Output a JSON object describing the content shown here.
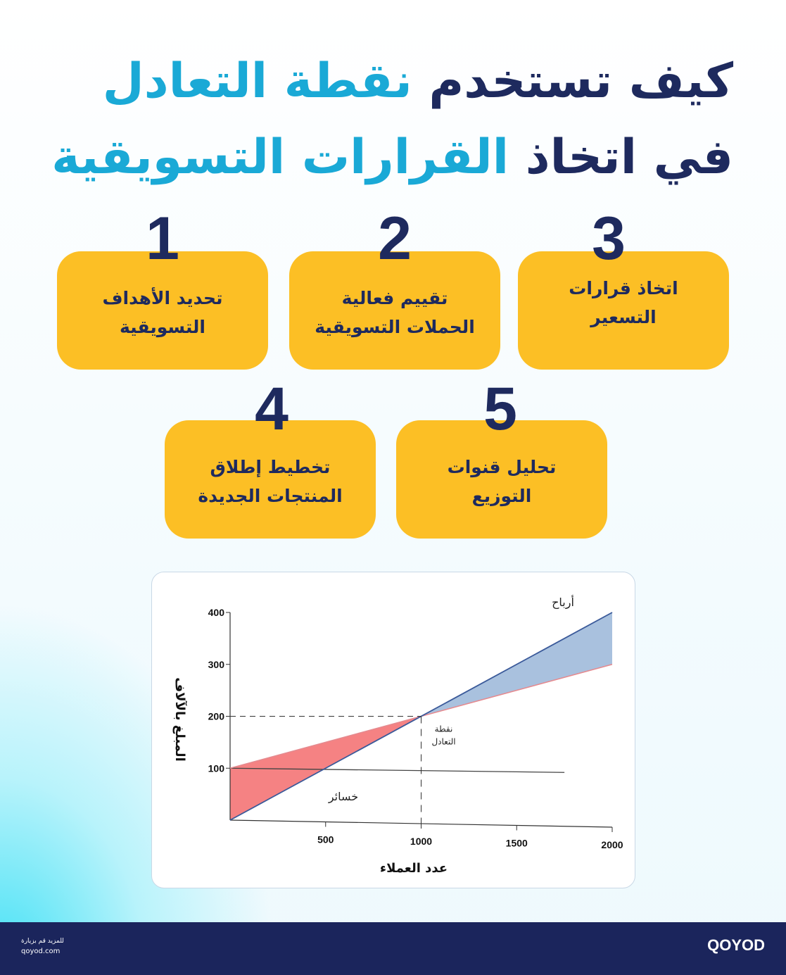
{
  "title": {
    "line1_dark": "كيف تستخدم",
    "line1_accent": "نقطة التعادل",
    "line2_dark": "في اتخاذ",
    "line2_accent": "القرارات التسويقية"
  },
  "colors": {
    "navy": "#1e2a5e",
    "accent": "#1aa9d6",
    "card": "#fcbf25",
    "loss": "#f58283",
    "profit": "#a9c1de",
    "footer": "#1b255c"
  },
  "cards": [
    {
      "number": "1",
      "text": "تحديد الأهداف التسويقية"
    },
    {
      "number": "2",
      "text": "تقييم فعالية الحملات التسويقية"
    },
    {
      "number": "3",
      "text": "اتخاذ قرارات التسعير"
    },
    {
      "number": "4",
      "text": "تخطيط إطلاق المنتجات الجديدة"
    },
    {
      "number": "5",
      "text": "تحليل قنوات التوزيع"
    }
  ],
  "chart_data": {
    "type": "line",
    "xlabel": "عدد العملاء",
    "ylabel": "المبلغ بالآلاف",
    "xlim": [
      0,
      2000
    ],
    "ylim": [
      0,
      400
    ],
    "x_ticks": [
      "500",
      "1000",
      "1500",
      "2000"
    ],
    "y_ticks": [
      "100",
      "200",
      "300",
      "400"
    ],
    "series": [
      {
        "role": "revenue",
        "x": [
          0,
          2000
        ],
        "y": [
          0,
          400
        ],
        "color": "#3b5a9a"
      },
      {
        "role": "total-cost",
        "x": [
          0,
          2000
        ],
        "y": [
          100,
          300
        ],
        "color": "#e58a8f"
      },
      {
        "role": "fixed-cost",
        "x": [
          0,
          1750
        ],
        "y": [
          100,
          100
        ],
        "color": "#444444"
      }
    ],
    "break_even": {
      "x": 1000,
      "y": 200,
      "label": "نقطة التعادل"
    },
    "annotations": {
      "loss": "خسائر",
      "profit": "أرباح"
    },
    "grid": false
  },
  "footer": {
    "visit_text": "للمزيد قم بزيارة",
    "url": "qoyod.com",
    "logo": "QOYOD"
  }
}
